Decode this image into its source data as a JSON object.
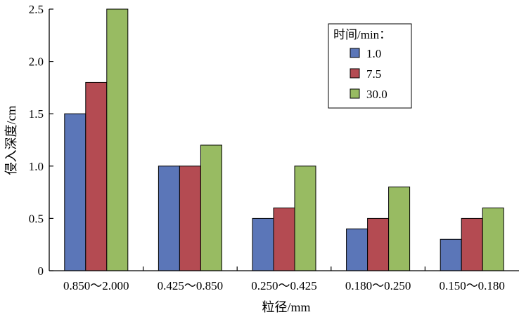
{
  "chart_data": {
    "type": "bar",
    "xlabel": "粒径/mm",
    "ylabel": "侵入深度/cm",
    "ylim": [
      0,
      2.5
    ],
    "yticks": [
      "0",
      "0.5",
      "1.0",
      "1.5",
      "2.0",
      "2.5"
    ],
    "categories": [
      "0.850～2.000",
      "0.425～0.850",
      "0.250～0.425",
      "0.180～0.250",
      "0.150～0.180"
    ],
    "series": [
      {
        "name": "1.0",
        "color": "#5b76b8",
        "values": [
          1.5,
          1.0,
          0.5,
          0.4,
          0.3
        ]
      },
      {
        "name": "7.5",
        "color": "#b44b52",
        "values": [
          1.8,
          1.0,
          0.6,
          0.5,
          0.5
        ]
      },
      {
        "name": "30.0",
        "color": "#98bb62",
        "values": [
          2.5,
          1.2,
          1.0,
          0.8,
          0.6
        ]
      }
    ],
    "legend": {
      "title": "时间/min：",
      "position": "top-right"
    },
    "grid": false
  }
}
